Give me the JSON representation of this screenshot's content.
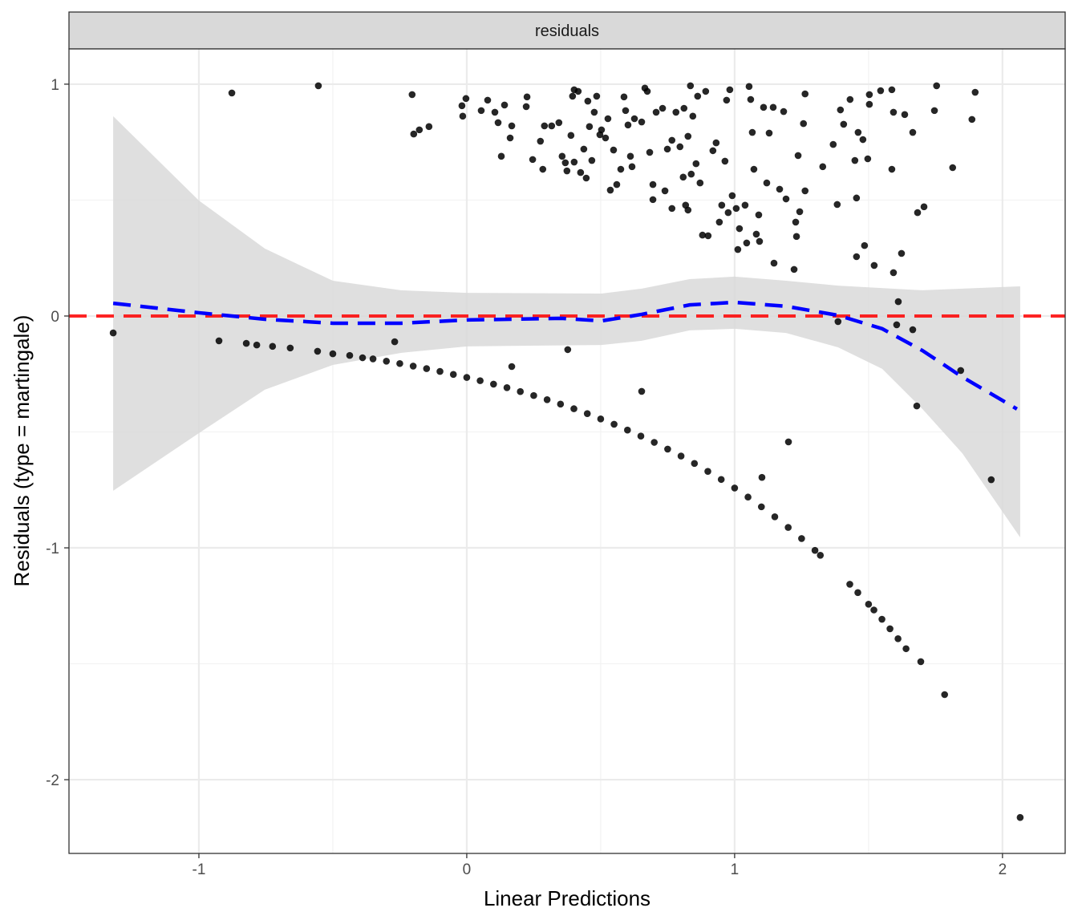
{
  "chart_data": {
    "type": "scatter",
    "strip_label": "residuals",
    "xlabel": "Linear Predictions",
    "ylabel": "Residuals (type = martingale)",
    "xlim": [
      -1.485,
      2.234
    ],
    "ylim": [
      -2.318,
      1.152
    ],
    "x_ticks": [
      -1,
      0,
      1,
      2
    ],
    "x_tick_labels": [
      "-1",
      "0",
      "1",
      "2"
    ],
    "y_ticks": [
      1,
      0,
      -1,
      -2
    ],
    "y_tick_labels": [
      "1",
      "0",
      "-1",
      "-2"
    ],
    "grid": true,
    "colors": {
      "points": "#000000",
      "smooth": "#0000ff",
      "reference": "#ff0000",
      "ribbon": "#d9d9d9",
      "strip": "#d9d9d9"
    },
    "reference_line": {
      "y": 0,
      "style": "dashed"
    },
    "points": [
      [
        -0.877,
        0.962
      ],
      [
        -0.554,
        0.993
      ],
      [
        -0.204,
        0.955
      ],
      [
        -0.198,
        0.785
      ],
      [
        -0.177,
        0.803
      ],
      [
        -0.141,
        0.817
      ],
      [
        -0.018,
        0.907
      ],
      [
        -0.015,
        0.862
      ],
      [
        -0.003,
        0.938
      ],
      [
        0.054,
        0.886
      ],
      [
        0.078,
        0.931
      ],
      [
        0.105,
        0.879
      ],
      [
        0.117,
        0.834
      ],
      [
        0.129,
        0.689
      ],
      [
        0.141,
        0.91
      ],
      [
        0.162,
        0.768
      ],
      [
        0.168,
        0.82
      ],
      [
        0.222,
        0.903
      ],
      [
        0.225,
        0.945
      ],
      [
        0.246,
        0.675
      ],
      [
        0.275,
        0.754
      ],
      [
        0.284,
        0.633
      ],
      [
        0.29,
        0.82
      ],
      [
        0.317,
        0.82
      ],
      [
        0.344,
        0.834
      ],
      [
        0.356,
        0.689
      ],
      [
        0.368,
        0.661
      ],
      [
        0.374,
        0.626
      ],
      [
        0.389,
        0.779
      ],
      [
        0.395,
        0.948
      ],
      [
        0.401,
        0.976
      ],
      [
        0.416,
        0.969
      ],
      [
        0.401,
        0.664
      ],
      [
        0.425,
        0.619
      ],
      [
        0.437,
        0.72
      ],
      [
        0.446,
        0.595
      ],
      [
        0.452,
        0.927
      ],
      [
        0.458,
        0.817
      ],
      [
        0.467,
        0.671
      ],
      [
        0.476,
        0.879
      ],
      [
        0.485,
        0.948
      ],
      [
        0.497,
        0.782
      ],
      [
        0.503,
        0.803
      ],
      [
        0.518,
        0.768
      ],
      [
        0.527,
        0.851
      ],
      [
        0.536,
        0.543
      ],
      [
        0.548,
        0.716
      ],
      [
        0.56,
        0.567
      ],
      [
        0.575,
        0.633
      ],
      [
        0.587,
        0.945
      ],
      [
        0.593,
        0.886
      ],
      [
        0.602,
        0.824
      ],
      [
        0.611,
        0.689
      ],
      [
        0.617,
        0.644
      ],
      [
        0.626,
        0.851
      ],
      [
        0.653,
        0.837
      ],
      [
        0.665,
        0.983
      ],
      [
        0.674,
        0.969
      ],
      [
        0.683,
        0.706
      ],
      [
        0.695,
        0.567
      ],
      [
        0.695,
        0.502
      ],
      [
        0.707,
        0.879
      ],
      [
        0.731,
        0.896
      ],
      [
        0.74,
        0.54
      ],
      [
        0.749,
        0.72
      ],
      [
        0.766,
        0.758
      ],
      [
        0.766,
        0.464
      ],
      [
        0.781,
        0.879
      ],
      [
        0.796,
        0.73
      ],
      [
        0.808,
        0.599
      ],
      [
        0.811,
        0.896
      ],
      [
        0.817,
        0.478
      ],
      [
        0.826,
        0.457
      ],
      [
        0.826,
        0.775
      ],
      [
        0.835,
        0.993
      ],
      [
        0.838,
        0.612
      ],
      [
        0.844,
        0.862
      ],
      [
        0.856,
        0.657
      ],
      [
        0.862,
        0.948
      ],
      [
        0.871,
        0.574
      ],
      [
        0.88,
        0.349
      ],
      [
        0.892,
        0.969
      ],
      [
        0.901,
        0.346
      ],
      [
        0.919,
        0.713
      ],
      [
        0.931,
        0.747
      ],
      [
        0.943,
        0.405
      ],
      [
        0.952,
        0.478
      ],
      [
        0.964,
        0.668
      ],
      [
        0.97,
        0.931
      ],
      [
        0.976,
        0.446
      ],
      [
        0.982,
        0.976
      ],
      [
        0.991,
        0.519
      ],
      [
        1.006,
        0.464
      ],
      [
        1.012,
        0.287
      ],
      [
        1.018,
        0.377
      ],
      [
        1.039,
        0.478
      ],
      [
        1.045,
        0.315
      ],
      [
        1.054,
        0.99
      ],
      [
        1.06,
        0.934
      ],
      [
        1.066,
        0.792
      ],
      [
        1.072,
        0.633
      ],
      [
        1.081,
        0.353
      ],
      [
        1.09,
        0.436
      ],
      [
        1.093,
        0.322
      ],
      [
        1.108,
        0.9
      ],
      [
        1.12,
        0.574
      ],
      [
        1.129,
        0.789
      ],
      [
        1.144,
        0.9
      ],
      [
        1.147,
        0.228
      ],
      [
        1.168,
        0.547
      ],
      [
        1.183,
        0.882
      ],
      [
        1.192,
        0.505
      ],
      [
        1.222,
        0.201
      ],
      [
        1.228,
        0.405
      ],
      [
        1.231,
        0.343
      ],
      [
        1.237,
        0.692
      ],
      [
        1.243,
        0.45
      ],
      [
        1.257,
        0.83
      ],
      [
        1.263,
        0.958
      ],
      [
        1.263,
        0.54
      ],
      [
        1.329,
        0.644
      ],
      [
        1.368,
        0.74
      ],
      [
        1.383,
        0.481
      ],
      [
        1.395,
        0.889
      ],
      [
        1.407,
        0.827
      ],
      [
        1.431,
        0.934
      ],
      [
        1.449,
        0.671
      ],
      [
        1.455,
        0.509
      ],
      [
        1.455,
        0.256
      ],
      [
        1.461,
        0.792
      ],
      [
        1.479,
        0.761
      ],
      [
        1.485,
        0.304
      ],
      [
        1.497,
        0.678
      ],
      [
        1.503,
        0.955
      ],
      [
        1.503,
        0.913
      ],
      [
        1.521,
        0.218
      ],
      [
        1.545,
        0.972
      ],
      [
        1.587,
        0.976
      ],
      [
        1.587,
        0.633
      ],
      [
        1.593,
        0.879
      ],
      [
        1.593,
        0.187
      ],
      [
        1.623,
        0.27
      ],
      [
        1.635,
        0.869
      ],
      [
        1.665,
        0.792
      ],
      [
        1.683,
        0.446
      ],
      [
        1.707,
        0.471
      ],
      [
        1.746,
        0.886
      ],
      [
        1.754,
        0.993
      ],
      [
        1.814,
        0.64
      ],
      [
        1.886,
        0.848
      ],
      [
        1.898,
        0.965
      ],
      [
        -1.32,
        -0.073
      ],
      [
        -0.925,
        -0.107
      ],
      [
        -0.823,
        -0.118
      ],
      [
        -0.784,
        -0.125
      ],
      [
        -0.725,
        -0.131
      ],
      [
        -0.659,
        -0.138
      ],
      [
        -0.557,
        -0.152
      ],
      [
        -0.5,
        -0.163
      ],
      [
        -0.437,
        -0.17
      ],
      [
        -0.389,
        -0.18
      ],
      [
        -0.269,
        -0.111
      ],
      [
        0.168,
        -0.218
      ],
      [
        0.377,
        -0.145
      ],
      [
        0.653,
        -0.325
      ],
      [
        1.102,
        -0.696
      ],
      [
        1.201,
        -0.543
      ],
      [
        1.386,
        -0.024
      ],
      [
        1.605,
        -0.038
      ],
      [
        1.611,
        0.062
      ],
      [
        1.665,
        -0.059
      ],
      [
        1.68,
        -0.388
      ],
      [
        1.844,
        -0.235
      ],
      [
        1.958,
        -0.706
      ],
      [
        2.066,
        -2.163
      ],
      [
        1.695,
        -1.491
      ],
      [
        1.784,
        -1.633
      ],
      [
        -0.35,
        -0.185
      ],
      [
        -0.3,
        -0.195
      ],
      [
        -0.25,
        -0.205
      ],
      [
        -0.2,
        -0.216
      ],
      [
        -0.15,
        -0.227
      ],
      [
        -0.1,
        -0.239
      ],
      [
        -0.05,
        -0.252
      ],
      [
        0,
        -0.265
      ],
      [
        0.05,
        -0.279
      ],
      [
        0.1,
        -0.294
      ],
      [
        0.15,
        -0.309
      ],
      [
        0.2,
        -0.326
      ],
      [
        0.25,
        -0.343
      ],
      [
        0.3,
        -0.361
      ],
      [
        0.35,
        -0.38
      ],
      [
        0.4,
        -0.4
      ],
      [
        0.45,
        -0.421
      ],
      [
        0.5,
        -0.444
      ],
      [
        0.55,
        -0.467
      ],
      [
        0.6,
        -0.492
      ],
      [
        0.65,
        -0.518
      ],
      [
        0.7,
        -0.545
      ],
      [
        0.75,
        -0.574
      ],
      [
        0.8,
        -0.604
      ],
      [
        0.85,
        -0.636
      ],
      [
        0.9,
        -0.67
      ],
      [
        0.95,
        -0.705
      ],
      [
        1.0,
        -0.742
      ],
      [
        1.05,
        -0.781
      ],
      [
        1.1,
        -0.823
      ],
      [
        1.15,
        -0.866
      ],
      [
        1.2,
        -0.912
      ],
      [
        1.25,
        -0.96
      ],
      [
        1.3,
        -1.011
      ],
      [
        1.32,
        -1.032
      ],
      [
        1.43,
        -1.157
      ],
      [
        1.46,
        -1.193
      ],
      [
        1.5,
        -1.243
      ],
      [
        1.52,
        -1.268
      ],
      [
        1.55,
        -1.308
      ],
      [
        1.58,
        -1.349
      ],
      [
        1.61,
        -1.392
      ],
      [
        1.64,
        -1.435
      ]
    ],
    "smooth_line": [
      [
        -1.32,
        0.055
      ],
      [
        -1.0,
        0.014
      ],
      [
        -0.754,
        -0.014
      ],
      [
        -0.5,
        -0.031
      ],
      [
        -0.246,
        -0.031
      ],
      [
        0,
        -0.017
      ],
      [
        0.353,
        -0.01
      ],
      [
        0.503,
        -0.021
      ],
      [
        0.653,
        0.007
      ],
      [
        0.832,
        0.048
      ],
      [
        1.0,
        0.059
      ],
      [
        1.192,
        0.042
      ],
      [
        1.386,
        0.003
      ],
      [
        1.551,
        -0.055
      ],
      [
        1.701,
        -0.149
      ],
      [
        1.85,
        -0.263
      ],
      [
        2.054,
        -0.401
      ]
    ],
    "ribbon_upper": [
      [
        -1.32,
        0.862
      ],
      [
        -1.0,
        0.498
      ],
      [
        -0.754,
        0.291
      ],
      [
        -0.5,
        0.152
      ],
      [
        -0.246,
        0.111
      ],
      [
        0,
        0.1
      ],
      [
        0.503,
        0.097
      ],
      [
        0.653,
        0.118
      ],
      [
        0.832,
        0.159
      ],
      [
        1.0,
        0.17
      ],
      [
        1.192,
        0.152
      ],
      [
        1.386,
        0.131
      ],
      [
        1.701,
        0.111
      ],
      [
        2.066,
        0.128
      ]
    ],
    "ribbon_lower": [
      [
        -1.32,
        -0.754
      ],
      [
        -1.0,
        -0.505
      ],
      [
        -0.754,
        -0.318
      ],
      [
        -0.5,
        -0.211
      ],
      [
        -0.246,
        -0.159
      ],
      [
        0,
        -0.131
      ],
      [
        0.503,
        -0.125
      ],
      [
        0.653,
        -0.107
      ],
      [
        0.832,
        -0.062
      ],
      [
        1.0,
        -0.055
      ],
      [
        1.192,
        -0.073
      ],
      [
        1.386,
        -0.135
      ],
      [
        1.551,
        -0.228
      ],
      [
        1.701,
        -0.401
      ],
      [
        1.85,
        -0.592
      ],
      [
        2.066,
        -0.955
      ]
    ]
  }
}
